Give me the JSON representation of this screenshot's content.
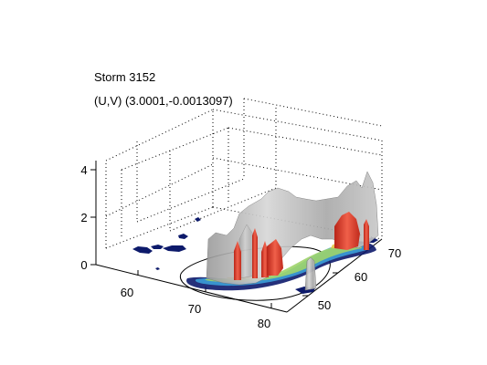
{
  "figure": {
    "title_line1": "Storm 3152",
    "title_line2": "(U,V) (3.0001,-0.0013097)"
  },
  "chart_data": {
    "type": "3d-surface",
    "title": [
      "Storm 3152",
      "(U,V) (3.0001,-0.0013097)"
    ],
    "xlabel": "",
    "ylabel": "",
    "zlabel": "",
    "x_ticks": [
      60,
      70,
      80
    ],
    "y_ticks": [
      50,
      60,
      70
    ],
    "z_ticks": [
      0,
      2,
      4
    ],
    "xlim": [
      55,
      85
    ],
    "ylim": [
      45,
      75
    ],
    "zlim": [
      0,
      4.5
    ],
    "grid": true,
    "colors": {
      "reflectivity_envelope": "#b4b4b4",
      "core": "#e03a2c",
      "footprint_low": "#0d1a6b",
      "footprint_mid": "#3b9fd8",
      "footprint_high": "#9fd46a",
      "footprint_peak": "#e8c84a"
    }
  }
}
